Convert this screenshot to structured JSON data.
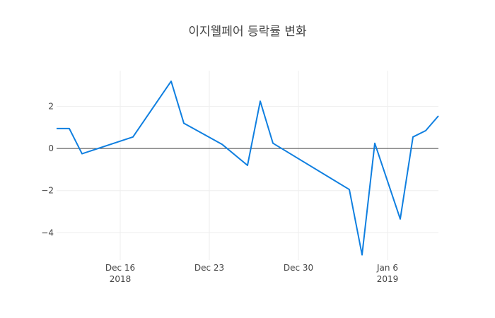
{
  "chart_data": {
    "type": "line",
    "title": "이지웰페어 등락률 변화",
    "xlabel": "",
    "ylabel": "",
    "x_range": [
      "2018-12-11",
      "2019-01-10"
    ],
    "ylim": [
      -5.3,
      3.7
    ],
    "grid": true,
    "zero_line": true,
    "line_color": "#0f7fe0",
    "x_ticks": [
      {
        "date": "2018-12-16",
        "label": "Dec 16",
        "sublabel": "2018"
      },
      {
        "date": "2018-12-23",
        "label": "Dec 23",
        "sublabel": ""
      },
      {
        "date": "2018-12-30",
        "label": "Dec 30",
        "sublabel": ""
      },
      {
        "date": "2019-01-06",
        "label": "Jan 6",
        "sublabel": "2019"
      }
    ],
    "y_ticks": [
      {
        "value": 2,
        "label": "2"
      },
      {
        "value": 0,
        "label": "0"
      },
      {
        "value": -2,
        "label": "−2"
      },
      {
        "value": -4,
        "label": "−4"
      }
    ],
    "series": [
      {
        "points": [
          {
            "x": "2018-12-11",
            "y": 0.95
          },
          {
            "x": "2018-12-12",
            "y": 0.95
          },
          {
            "x": "2018-12-13",
            "y": -0.25
          },
          {
            "x": "2018-12-17",
            "y": 0.55
          },
          {
            "x": "2018-12-20",
            "y": 3.2
          },
          {
            "x": "2018-12-21",
            "y": 1.2
          },
          {
            "x": "2018-12-24",
            "y": 0.2
          },
          {
            "x": "2018-12-26",
            "y": -0.8
          },
          {
            "x": "2018-12-27",
            "y": 2.25
          },
          {
            "x": "2018-12-28",
            "y": 0.25
          },
          {
            "x": "2019-01-03",
            "y": -1.95
          },
          {
            "x": "2019-01-04",
            "y": -5.05
          },
          {
            "x": "2019-01-05",
            "y": 0.25
          },
          {
            "x": "2019-01-07",
            "y": -3.35
          },
          {
            "x": "2019-01-08",
            "y": 0.55
          },
          {
            "x": "2019-01-09",
            "y": 0.85
          },
          {
            "x": "2019-01-10",
            "y": 1.55
          }
        ]
      }
    ]
  }
}
